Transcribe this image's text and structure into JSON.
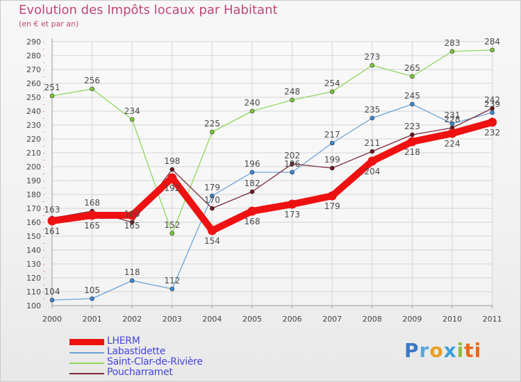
{
  "header": {
    "title": "Evolution des Impôts locaux par Habitant",
    "subtitle": "(en € et par an)"
  },
  "logo": {
    "text": "Proxiti",
    "letters": [
      "P",
      "r",
      "o",
      "x",
      "i",
      "ti"
    ]
  },
  "chart_data": {
    "type": "line",
    "title": "Evolution des Impôts locaux par Habitant",
    "subtitle": "(en € et par an)",
    "xlabel": "",
    "ylabel": "",
    "ylim": [
      100,
      290
    ],
    "y_ticks": [
      100,
      110,
      120,
      130,
      140,
      150,
      160,
      170,
      180,
      190,
      200,
      210,
      220,
      230,
      240,
      250,
      260,
      270,
      280,
      290
    ],
    "grid": true,
    "legend_position": "bottom-left",
    "categories": [
      "2000",
      "2001",
      "2002",
      "2003",
      "2004",
      "2005",
      "2006",
      "2007",
      "2008",
      "2009",
      "2010",
      "2011"
    ],
    "series": [
      {
        "name": "Labastidette",
        "color": "#6aa2d8",
        "marker_color": "#3a88d0",
        "values": [
          104,
          105,
          118,
          112,
          179,
          196,
          196,
          217,
          235,
          245,
          231,
          239
        ]
      },
      {
        "name": "Saint-Clar-de-Rivière",
        "color": "#8fd65a",
        "marker_color": "#7cc63c",
        "values": [
          251,
          256,
          234,
          152,
          225,
          240,
          248,
          254,
          273,
          265,
          283,
          284
        ]
      },
      {
        "name": "Poucharramet",
        "color": "#7a2a38",
        "marker_color": "#6a1820",
        "values": [
          163,
          168,
          160,
          198,
          170,
          182,
          202,
          199,
          211,
          223,
          228,
          242
        ]
      },
      {
        "name": "LHERM",
        "color": "#ee1111",
        "marker_color": "#ee1111",
        "values": [
          161,
          165,
          165,
          192,
          154,
          168,
          173,
          179,
          204,
          218,
          224,
          232
        ]
      }
    ],
    "legend": [
      "LHERM",
      "Labastidette",
      "Saint-Clar-de-Rivière",
      "Poucharramet"
    ]
  }
}
